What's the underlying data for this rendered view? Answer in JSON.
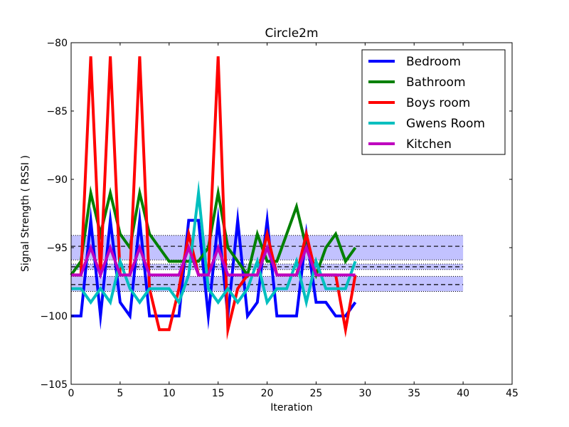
{
  "chart_data": {
    "type": "line",
    "title": "Circle2m",
    "xlabel": "Iteration",
    "ylabel": "Signal Strength  ( RSSI )",
    "xlim": [
      0,
      45
    ],
    "ylim": [
      -105,
      -80
    ],
    "xticks": [
      0,
      5,
      10,
      15,
      20,
      25,
      30,
      35,
      40,
      45
    ],
    "yticks": [
      -105,
      -100,
      -95,
      -90,
      -85,
      -80
    ],
    "xtick_labels": [
      "0",
      "5",
      "10",
      "15",
      "20",
      "25",
      "30",
      "35",
      "40",
      "45"
    ],
    "ytick_labels": [
      "−105",
      "−100",
      "−95",
      "−90",
      "−85",
      "−80"
    ],
    "grid": false,
    "legend_position": "top-right",
    "bands": [
      {
        "x": [
          0,
          40
        ],
        "lower": -95.9,
        "upper": -94.1,
        "center": -94.9,
        "color": "#9999ff"
      },
      {
        "x": [
          0,
          40
        ],
        "lower": -96.6,
        "upper": -96.2,
        "center": -96.4,
        "color": "#9999ff"
      },
      {
        "x": [
          0,
          40
        ],
        "lower": -98.2,
        "upper": -97.1,
        "center": -97.7,
        "color": "#9999ff"
      }
    ],
    "series": [
      {
        "name": "Bedroom",
        "color": "#0000ff",
        "x": [
          0,
          1,
          2,
          3,
          4,
          5,
          6,
          7,
          8,
          9,
          10,
          11,
          12,
          13,
          14,
          15,
          16,
          17,
          18,
          19,
          20,
          21,
          22,
          23,
          24,
          25,
          26,
          27,
          28,
          29
        ],
        "y": [
          -100,
          -100,
          -93,
          -100,
          -93,
          -99,
          -100,
          -93,
          -100,
          -100,
          -100,
          -100,
          -93,
          -93,
          -100,
          -93,
          -100,
          -93,
          -100,
          -99,
          -93,
          -100,
          -100,
          -100,
          -94,
          -99,
          -99,
          -100,
          -100,
          -99
        ]
      },
      {
        "name": "Bathroom",
        "color": "#008000",
        "x": [
          0,
          1,
          2,
          3,
          4,
          5,
          6,
          7,
          8,
          9,
          10,
          11,
          12,
          13,
          14,
          15,
          16,
          17,
          18,
          19,
          20,
          21,
          22,
          23,
          24,
          25,
          26,
          27,
          28,
          29
        ],
        "y": [
          -97,
          -96,
          -91,
          -94,
          -91,
          -94,
          -95,
          -91,
          -94,
          -95,
          -96,
          -96,
          -96,
          -96,
          -95,
          -91,
          -95,
          -96,
          -97,
          -94,
          -96,
          -96,
          -94,
          -92,
          -95,
          -97,
          -95,
          -94,
          -96,
          -95
        ]
      },
      {
        "name": "Boys room",
        "color": "#ff0000",
        "x": [
          0,
          1,
          2,
          3,
          4,
          5,
          6,
          7,
          8,
          9,
          10,
          11,
          12,
          13,
          14,
          15,
          16,
          17,
          18,
          19,
          20,
          21,
          22,
          23,
          24,
          25,
          26,
          27,
          28,
          29
        ],
        "y": [
          -97,
          -97,
          -81,
          -97,
          -81,
          -97,
          -97,
          -81,
          -98,
          -101,
          -101,
          -98,
          -94,
          -97,
          -97,
          -81,
          -101,
          -98,
          -97,
          -97,
          -94,
          -97,
          -97,
          -97,
          -94,
          -97,
          -97,
          -97,
          -101,
          -97
        ]
      },
      {
        "name": "Gwens Room",
        "color": "#00bfbf",
        "x": [
          0,
          1,
          2,
          3,
          4,
          5,
          6,
          7,
          8,
          9,
          10,
          11,
          12,
          13,
          14,
          15,
          16,
          17,
          18,
          19,
          20,
          21,
          22,
          23,
          24,
          25,
          26,
          27,
          28,
          29
        ],
        "y": [
          -98,
          -98,
          -99,
          -98,
          -99,
          -96,
          -98,
          -99,
          -98,
          -98,
          -98,
          -99,
          -97,
          -91,
          -98,
          -99,
          -98,
          -99,
          -98,
          -96,
          -99,
          -98,
          -98,
          -96,
          -99,
          -96,
          -98,
          -98,
          -98,
          -96
        ]
      },
      {
        "name": "Kitchen",
        "color": "#bf00bf",
        "x": [
          0,
          1,
          2,
          3,
          4,
          5,
          6,
          7,
          8,
          9,
          10,
          11,
          12,
          13,
          14,
          15,
          16,
          17,
          18,
          19,
          20,
          21,
          22,
          23,
          24,
          25,
          26,
          27,
          28,
          29
        ],
        "y": [
          -97,
          -97,
          -95,
          -97,
          -95,
          -97,
          -97,
          -95,
          -97,
          -97,
          -97,
          -97,
          -95,
          -97,
          -97,
          -95,
          -97,
          -97,
          -97,
          -97,
          -95,
          -97,
          -97,
          -97,
          -95,
          -97,
          -97,
          -97,
          -97,
          -97
        ]
      }
    ]
  }
}
